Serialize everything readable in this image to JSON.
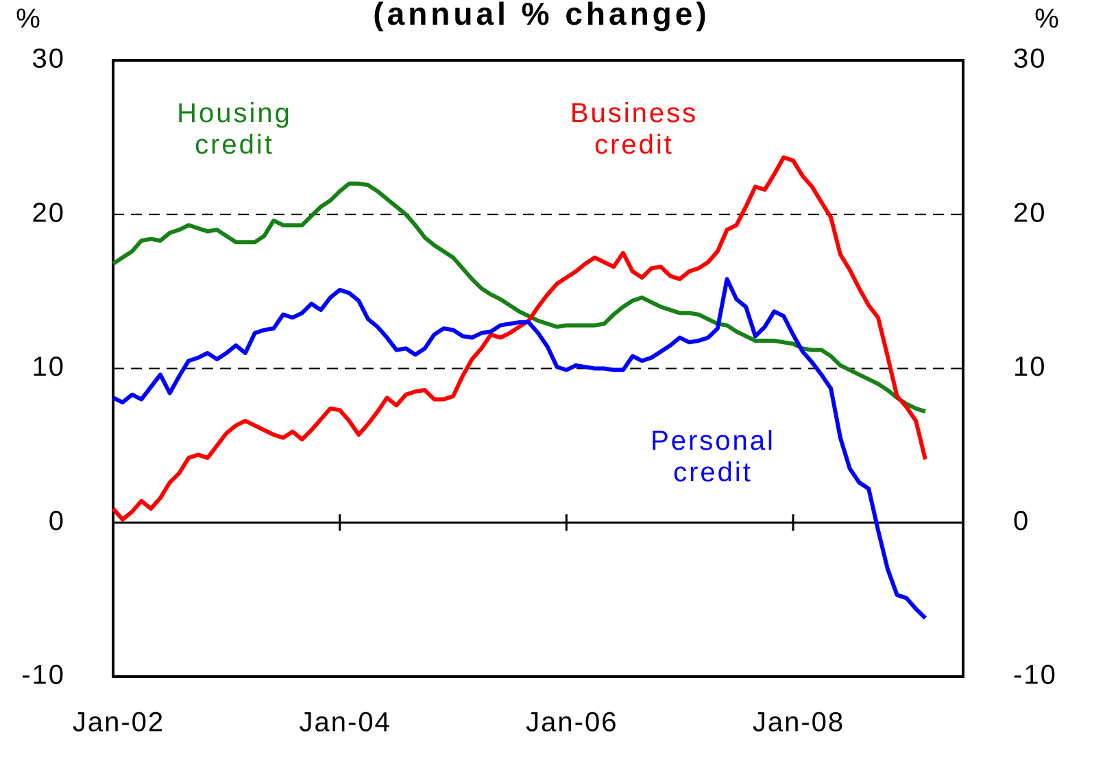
{
  "chart_data": {
    "type": "line",
    "title": "(annual % change)",
    "y_label": "%",
    "y2_label": "%",
    "categories": [
      "Jan-02",
      null,
      null,
      null,
      null,
      null,
      null,
      null,
      null,
      null,
      null,
      null,
      null,
      null,
      null,
      null,
      null,
      null,
      null,
      null,
      null,
      null,
      null,
      null,
      "Jan-04",
      null,
      null,
      null,
      null,
      null,
      null,
      null,
      null,
      null,
      null,
      null,
      null,
      null,
      null,
      null,
      null,
      null,
      null,
      null,
      null,
      null,
      null,
      null,
      "Jan-06",
      null,
      null,
      null,
      null,
      null,
      null,
      null,
      null,
      null,
      null,
      null,
      null,
      null,
      null,
      null,
      null,
      null,
      null,
      null,
      null,
      null,
      null,
      null,
      "Jan-08",
      null,
      null,
      null,
      null,
      null,
      null,
      null,
      null,
      null,
      null,
      null,
      null,
      null,
      null
    ],
    "series": [
      {
        "name": "Housing credit",
        "color": "#178117",
        "values": [
          16.8,
          17.2,
          17.6,
          18.3,
          18.4,
          18.3,
          18.8,
          19.0,
          19.3,
          19.1,
          18.9,
          19.0,
          18.6,
          18.2,
          18.2,
          18.2,
          18.6,
          19.6,
          19.3,
          19.3,
          19.3,
          19.9,
          20.5,
          20.9,
          21.5,
          22.0,
          22.0,
          21.9,
          21.5,
          21.0,
          20.5,
          20.0,
          19.3,
          18.5,
          18.0,
          17.6,
          17.2,
          16.5,
          15.8,
          15.2,
          14.8,
          14.5,
          14.1,
          13.7,
          13.4,
          13.1,
          12.9,
          12.7,
          12.8,
          12.8,
          12.8,
          12.8,
          12.9,
          13.5,
          14.0,
          14.4,
          14.6,
          14.3,
          14.0,
          13.8,
          13.6,
          13.6,
          13.5,
          13.2,
          12.9,
          12.8,
          12.4,
          12.1,
          11.8,
          11.8,
          11.8,
          11.7,
          11.6,
          11.3,
          11.2,
          11.2,
          10.8,
          10.2,
          9.9,
          9.6,
          9.3,
          9.0,
          8.6,
          8.1,
          7.7,
          7.4,
          7.2
        ]
      },
      {
        "name": "Business credit",
        "color": "#ff0000",
        "values": [
          0.9,
          0.2,
          0.7,
          1.4,
          0.9,
          1.6,
          2.6,
          3.2,
          4.2,
          4.4,
          4.2,
          5.0,
          5.8,
          6.3,
          6.6,
          6.3,
          6.0,
          5.7,
          5.5,
          5.9,
          5.4,
          6.0,
          6.7,
          7.4,
          7.3,
          6.6,
          5.7,
          6.4,
          7.2,
          8.1,
          7.6,
          8.3,
          8.5,
          8.6,
          8.0,
          8.0,
          8.2,
          9.5,
          10.6,
          11.3,
          12.2,
          12.0,
          12.3,
          12.7,
          13.1,
          14.0,
          14.8,
          15.5,
          15.9,
          16.3,
          16.8,
          17.2,
          16.9,
          16.6,
          17.5,
          16.3,
          15.9,
          16.5,
          16.6,
          16.0,
          15.8,
          16.3,
          16.5,
          16.9,
          17.6,
          19.0,
          19.3,
          20.5,
          21.8,
          21.6,
          22.6,
          23.7,
          23.5,
          22.5,
          21.8,
          20.8,
          19.8,
          17.4,
          16.4,
          15.2,
          14.1,
          13.3,
          10.8,
          8.2,
          7.5,
          6.6,
          4.1
        ]
      },
      {
        "name": "Personal credit",
        "color": "#0000ff",
        "values": [
          8.1,
          7.8,
          8.3,
          8.0,
          8.8,
          9.6,
          8.4,
          9.5,
          10.5,
          10.7,
          11.0,
          10.6,
          11.0,
          11.5,
          11.0,
          12.3,
          12.5,
          12.6,
          13.5,
          13.3,
          13.6,
          14.2,
          13.8,
          14.6,
          15.1,
          14.9,
          14.4,
          13.2,
          12.7,
          12.0,
          11.2,
          11.3,
          10.9,
          11.3,
          12.2,
          12.6,
          12.5,
          12.1,
          12.0,
          12.3,
          12.4,
          12.8,
          12.9,
          13.0,
          13.0,
          12.3,
          11.4,
          10.1,
          9.9,
          10.2,
          10.1,
          10.0,
          10.0,
          9.9,
          9.9,
          10.8,
          10.5,
          10.7,
          11.1,
          11.5,
          12.0,
          11.7,
          11.8,
          12.0,
          12.6,
          15.8,
          14.5,
          14.0,
          12.1,
          12.7,
          13.7,
          13.4,
          12.2,
          11.1,
          10.4,
          9.6,
          8.7,
          5.5,
          3.5,
          2.6,
          2.2,
          -0.5,
          -3.0,
          -4.7,
          -4.9,
          -5.6,
          -6.2
        ]
      }
    ],
    "ylim": [
      -10,
      30
    ],
    "yticks": [
      -10,
      0,
      10,
      20,
      30
    ],
    "y2lim": [
      -10,
      30
    ],
    "y2ticks": [
      -10,
      0,
      10,
      20,
      30
    ],
    "grid": true
  }
}
